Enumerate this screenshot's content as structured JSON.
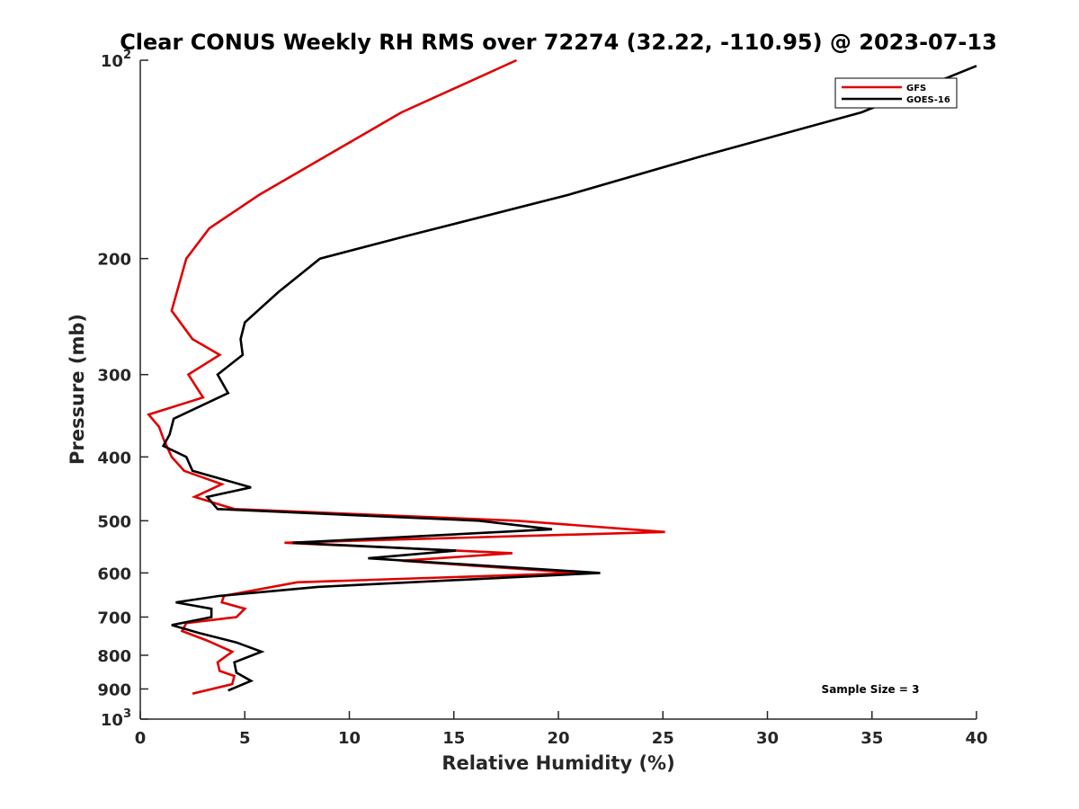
{
  "chart_data": {
    "type": "line",
    "title": "Clear CONUS Weekly RH RMS over 72274 (32.22, -110.95) @ 2023-07-13",
    "xlabel": "Relative Humidity (%)",
    "ylabel": "Pressure (mb)",
    "xlim": [
      0,
      40
    ],
    "ylim": [
      100,
      1000
    ],
    "y_scale": "log",
    "y_reversed": true,
    "x_ticks": [
      "0",
      "5",
      "10",
      "15",
      "20",
      "25",
      "30",
      "35",
      "40"
    ],
    "y_ticks": [
      {
        "p": 100,
        "base": "10",
        "exp": "2"
      },
      {
        "p": 200,
        "base": "200",
        "exp": ""
      },
      {
        "p": 300,
        "base": "300",
        "exp": ""
      },
      {
        "p": 400,
        "base": "400",
        "exp": ""
      },
      {
        "p": 500,
        "base": "500",
        "exp": ""
      },
      {
        "p": 600,
        "base": "600",
        "exp": ""
      },
      {
        "p": 700,
        "base": "700",
        "exp": ""
      },
      {
        "p": 800,
        "base": "800",
        "exp": ""
      },
      {
        "p": 900,
        "base": "900",
        "exp": ""
      },
      {
        "p": 1000,
        "base": "10",
        "exp": "3"
      }
    ],
    "legend_position": "top-right",
    "grid": false,
    "series": [
      {
        "name": "GFS",
        "color": "#e00000",
        "points": [
          [
            18.0,
            100
          ],
          [
            12.5,
            120
          ],
          [
            5.7,
            160
          ],
          [
            3.3,
            180
          ],
          [
            2.2,
            200
          ],
          [
            1.5,
            240
          ],
          [
            2.5,
            265
          ],
          [
            3.8,
            280
          ],
          [
            2.3,
            300
          ],
          [
            3.0,
            325
          ],
          [
            0.4,
            345
          ],
          [
            0.9,
            360
          ],
          [
            1.1,
            375
          ],
          [
            1.5,
            400
          ],
          [
            2.1,
            420
          ],
          [
            3.9,
            440
          ],
          [
            2.6,
            460
          ],
          [
            4.5,
            480
          ],
          [
            18.0,
            500
          ],
          [
            25.1,
            520
          ],
          [
            6.9,
            540
          ],
          [
            17.8,
            560
          ],
          [
            12.5,
            575
          ],
          [
            21.0,
            600
          ],
          [
            7.5,
            620
          ],
          [
            4.0,
            650
          ],
          [
            3.9,
            665
          ],
          [
            5.0,
            680
          ],
          [
            4.6,
            700
          ],
          [
            2.2,
            715
          ],
          [
            2.0,
            735
          ],
          [
            3.2,
            760
          ],
          [
            4.4,
            790
          ],
          [
            3.7,
            820
          ],
          [
            3.8,
            845
          ],
          [
            4.5,
            860
          ],
          [
            4.4,
            885
          ],
          [
            2.5,
            915
          ]
        ]
      },
      {
        "name": "GOES-16",
        "color": "#000000",
        "points": [
          [
            40.0,
            102
          ],
          [
            34.5,
            120
          ],
          [
            26.8,
            140
          ],
          [
            20.5,
            160
          ],
          [
            12.7,
            185
          ],
          [
            8.6,
            200
          ],
          [
            6.6,
            225
          ],
          [
            5.0,
            250
          ],
          [
            4.8,
            265
          ],
          [
            4.9,
            280
          ],
          [
            3.7,
            300
          ],
          [
            4.2,
            320
          ],
          [
            1.6,
            350
          ],
          [
            1.4,
            370
          ],
          [
            1.1,
            385
          ],
          [
            2.2,
            400
          ],
          [
            2.5,
            420
          ],
          [
            5.3,
            445
          ],
          [
            3.2,
            460
          ],
          [
            3.7,
            480
          ],
          [
            16.2,
            500
          ],
          [
            19.7,
            515
          ],
          [
            7.3,
            540
          ],
          [
            15.1,
            555
          ],
          [
            10.9,
            570
          ],
          [
            22.0,
            600
          ],
          [
            8.5,
            630
          ],
          [
            3.8,
            650
          ],
          [
            1.7,
            665
          ],
          [
            3.4,
            680
          ],
          [
            3.4,
            700
          ],
          [
            1.5,
            720
          ],
          [
            2.8,
            740
          ],
          [
            4.6,
            765
          ],
          [
            5.8,
            790
          ],
          [
            4.5,
            820
          ],
          [
            4.6,
            850
          ],
          [
            5.3,
            875
          ],
          [
            4.2,
            905
          ]
        ]
      }
    ],
    "annotation": "Sample Size = 3"
  }
}
